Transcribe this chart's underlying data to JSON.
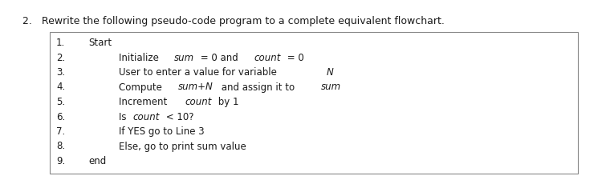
{
  "title": "2.   Rewrite the following pseudo-code program to a complete equivalent flowchart.",
  "background": "#ffffff",
  "box_edge_color": "#888888",
  "lines": [
    {
      "num": "1.",
      "indent": 0,
      "parts": [
        {
          "text": "Start",
          "italic": false
        }
      ]
    },
    {
      "num": "2.",
      "indent": 1,
      "parts": [
        {
          "text": "Initialize ",
          "italic": false
        },
        {
          "text": "sum",
          "italic": true
        },
        {
          "text": " = 0 and ",
          "italic": false
        },
        {
          "text": "count",
          "italic": true
        },
        {
          "text": " = 0",
          "italic": false
        }
      ]
    },
    {
      "num": "3.",
      "indent": 1,
      "parts": [
        {
          "text": "User to enter a value for variable ",
          "italic": false
        },
        {
          "text": "N",
          "italic": true
        }
      ]
    },
    {
      "num": "4.",
      "indent": 1,
      "parts": [
        {
          "text": "Compute ",
          "italic": false
        },
        {
          "text": "sum+N",
          "italic": true
        },
        {
          "text": " and assign it to ",
          "italic": false
        },
        {
          "text": "sum",
          "italic": true
        }
      ]
    },
    {
      "num": "5.",
      "indent": 1,
      "parts": [
        {
          "text": "Increment ",
          "italic": false
        },
        {
          "text": "count",
          "italic": true
        },
        {
          "text": " by 1",
          "italic": false
        }
      ]
    },
    {
      "num": "6.",
      "indent": 1,
      "parts": [
        {
          "text": "Is ",
          "italic": false
        },
        {
          "text": "count",
          "italic": true
        },
        {
          "text": " < 10?",
          "italic": false
        }
      ]
    },
    {
      "num": "7.",
      "indent": 1,
      "parts": [
        {
          "text": "If YES go to Line 3",
          "italic": false
        }
      ]
    },
    {
      "num": "8.",
      "indent": 1,
      "parts": [
        {
          "text": "Else, go to print sum value",
          "italic": false
        }
      ]
    },
    {
      "num": "9.",
      "indent": 0,
      "parts": [
        {
          "text": "end",
          "italic": false
        }
      ]
    }
  ],
  "title_fontsize": 9.0,
  "text_fontsize": 8.5,
  "num_fontsize": 8.5
}
